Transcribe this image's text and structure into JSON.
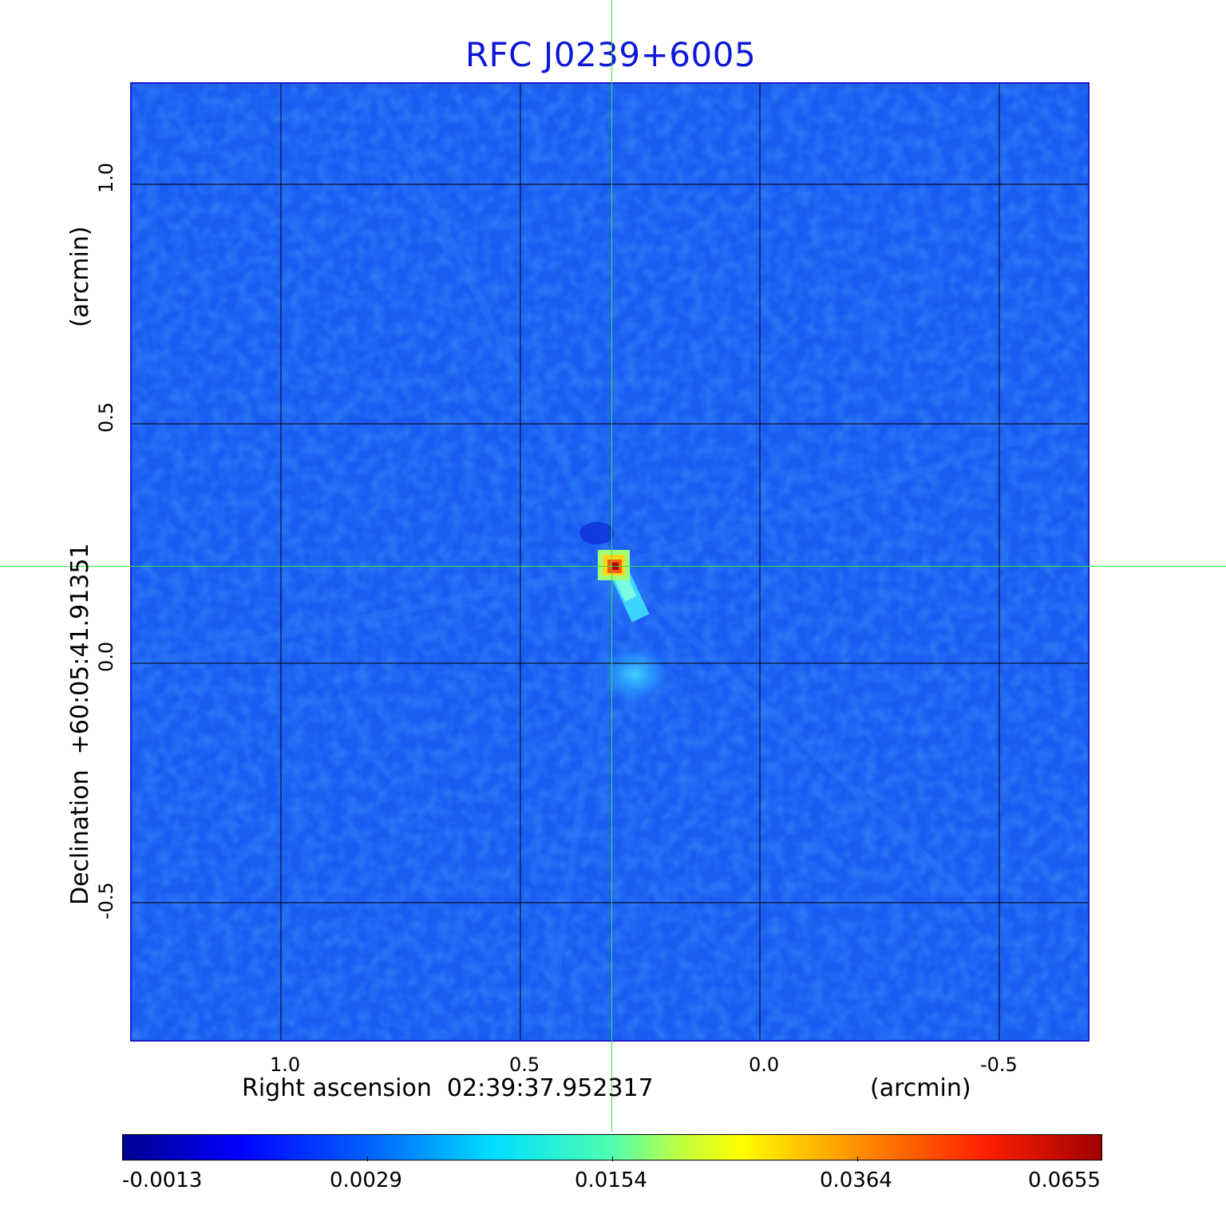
{
  "title": "RFC J0239+6005",
  "y_axis": {
    "label": "Declination  +60:05:41.91351",
    "unit": "(arcmin)",
    "ticks": [
      "1.0",
      "0.5",
      "0.0",
      "-0.5"
    ],
    "tick_values": [
      1.0,
      0.5,
      0.0,
      -0.5
    ]
  },
  "x_axis": {
    "label": "Right ascension  02:39:37.952317",
    "unit": "(arcmin)",
    "ticks": [
      "1.0",
      "0.5",
      "0.0",
      "-0.5"
    ],
    "tick_values": [
      1.0,
      0.5,
      0.0,
      -0.5
    ]
  },
  "colorbar": {
    "labels": [
      "-0.0013",
      "0.0029",
      "0.0154",
      "0.0364",
      "0.0655"
    ],
    "colormap": "jet"
  },
  "colors": {
    "title": "#0f18d6",
    "crosshair": "#35e635",
    "background_map": "#1a5cf2",
    "grid": "#000000"
  }
}
